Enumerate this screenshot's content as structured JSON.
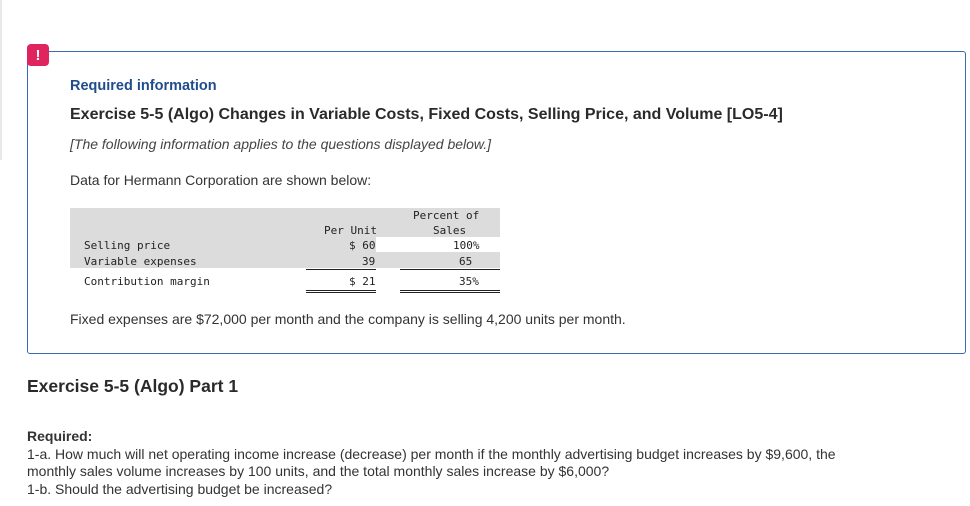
{
  "alert_glyph": "!",
  "required_info": "Required information",
  "exercise_title": "Exercise 5-5 (Algo) Changes in Variable Costs, Fixed Costs, Selling Price, and Volume [LO5-4]",
  "note": "[The following information applies to the questions displayed below.]",
  "intro": "Data for Hermann Corporation are shown below:",
  "table": {
    "header_per_unit": "Per Unit",
    "header_percent_line1": "Percent of",
    "header_percent_line2": "Sales",
    "rows": [
      {
        "label": "Selling price",
        "per_unit": "$ 60",
        "percent": "100%"
      },
      {
        "label": "Variable expenses",
        "per_unit": "39",
        "percent": "65"
      },
      {
        "label": "Contribution margin",
        "per_unit": "$ 21",
        "percent": "35%"
      }
    ]
  },
  "fixed_expenses": "Fixed expenses are $72,000 per month and the company is selling 4,200 units per month.",
  "part_title": "Exercise 5-5 (Algo) Part 1",
  "required": {
    "label": "Required:",
    "lines": [
      "1-a. How much will net operating income increase (decrease) per month if the monthly advertising budget increases by $9,600, the",
      "monthly sales volume increases by 100 units, and the total monthly sales increase by $6,000?",
      "1-b. Should the advertising budget be increased?"
    ]
  }
}
